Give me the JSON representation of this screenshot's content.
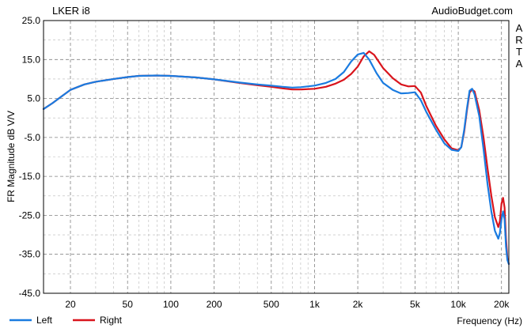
{
  "chart_data": {
    "type": "line",
    "title": "LKER i8",
    "watermark": "AudioBudget.com",
    "side_label": "ARTA",
    "xlabel": "Frequency (Hz)",
    "ylabel": "FR Magnitude dB V/V",
    "xscale": "log",
    "xlim": [
      13,
      22500
    ],
    "ylim": [
      -45,
      25
    ],
    "grid": true,
    "legend_position": "bottom-left",
    "x_ticks": [
      {
        "v": 20,
        "label": "20"
      },
      {
        "v": 50,
        "label": "50"
      },
      {
        "v": 100,
        "label": "100"
      },
      {
        "v": 200,
        "label": "200"
      },
      {
        "v": 500,
        "label": "500"
      },
      {
        "v": 1000,
        "label": "1k"
      },
      {
        "v": 2000,
        "label": "2k"
      },
      {
        "v": 5000,
        "label": "5k"
      },
      {
        "v": 10000,
        "label": "10k"
      },
      {
        "v": 20000,
        "label": "20k"
      }
    ],
    "y_ticks": [
      {
        "v": 25,
        "label": "25.0"
      },
      {
        "v": 15,
        "label": "15.0"
      },
      {
        "v": 5,
        "label": "5.0"
      },
      {
        "v": -5,
        "label": "-5.0"
      },
      {
        "v": -15,
        "label": "-15.0"
      },
      {
        "v": -25,
        "label": "-25.0"
      },
      {
        "v": -35,
        "label": "-35.0"
      },
      {
        "v": -45,
        "label": "-45.0"
      }
    ],
    "series": [
      {
        "name": "Left",
        "color": "#1a7be0",
        "points": [
          [
            13,
            2.3
          ],
          [
            15,
            3.8
          ],
          [
            17,
            5.3
          ],
          [
            20,
            7.2
          ],
          [
            25,
            8.6
          ],
          [
            30,
            9.3
          ],
          [
            40,
            10.0
          ],
          [
            50,
            10.5
          ],
          [
            60,
            10.8
          ],
          [
            80,
            10.9
          ],
          [
            100,
            10.8
          ],
          [
            150,
            10.4
          ],
          [
            200,
            9.9
          ],
          [
            300,
            9.1
          ],
          [
            400,
            8.6
          ],
          [
            500,
            8.3
          ],
          [
            600,
            8.0
          ],
          [
            700,
            7.8
          ],
          [
            800,
            7.9
          ],
          [
            1000,
            8.3
          ],
          [
            1200,
            9.0
          ],
          [
            1400,
            10.0
          ],
          [
            1600,
            11.8
          ],
          [
            1800,
            14.5
          ],
          [
            2000,
            16.3
          ],
          [
            2200,
            16.7
          ],
          [
            2400,
            15.0
          ],
          [
            2700,
            11.5
          ],
          [
            3000,
            9.0
          ],
          [
            3500,
            7.2
          ],
          [
            4000,
            6.3
          ],
          [
            4500,
            6.4
          ],
          [
            5000,
            6.6
          ],
          [
            5500,
            4.5
          ],
          [
            6000,
            1.5
          ],
          [
            7000,
            -3.0
          ],
          [
            8000,
            -6.5
          ],
          [
            9000,
            -8.2
          ],
          [
            10000,
            -8.5
          ],
          [
            10500,
            -7.5
          ],
          [
            11000,
            -3.0
          ],
          [
            11500,
            2.5
          ],
          [
            12000,
            7.0
          ],
          [
            12500,
            7.5
          ],
          [
            13000,
            6.0
          ],
          [
            14000,
            0.5
          ],
          [
            15000,
            -8.0
          ],
          [
            16000,
            -17.0
          ],
          [
            17000,
            -24.0
          ],
          [
            18000,
            -29.0
          ],
          [
            19000,
            -31.0
          ],
          [
            19500,
            -29.5
          ],
          [
            20000,
            -26.0
          ],
          [
            20500,
            -24.0
          ],
          [
            21000,
            -26.0
          ],
          [
            21500,
            -33.0
          ],
          [
            22000,
            -36.5
          ],
          [
            22500,
            -37.5
          ]
        ]
      },
      {
        "name": "Right",
        "color": "#d9141c",
        "points": [
          [
            13,
            2.3
          ],
          [
            15,
            3.8
          ],
          [
            17,
            5.3
          ],
          [
            20,
            7.2
          ],
          [
            25,
            8.6
          ],
          [
            30,
            9.3
          ],
          [
            40,
            10.0
          ],
          [
            50,
            10.5
          ],
          [
            60,
            10.8
          ],
          [
            80,
            10.9
          ],
          [
            100,
            10.8
          ],
          [
            150,
            10.4
          ],
          [
            200,
            9.9
          ],
          [
            300,
            9.0
          ],
          [
            400,
            8.4
          ],
          [
            500,
            8.0
          ],
          [
            600,
            7.6
          ],
          [
            700,
            7.3
          ],
          [
            800,
            7.3
          ],
          [
            1000,
            7.5
          ],
          [
            1200,
            8.0
          ],
          [
            1400,
            8.8
          ],
          [
            1600,
            9.8
          ],
          [
            1800,
            11.3
          ],
          [
            2000,
            13.2
          ],
          [
            2200,
            15.8
          ],
          [
            2400,
            17.1
          ],
          [
            2600,
            16.2
          ],
          [
            3000,
            12.8
          ],
          [
            3500,
            10.2
          ],
          [
            4000,
            8.6
          ],
          [
            4500,
            8.1
          ],
          [
            5000,
            8.2
          ],
          [
            5500,
            6.5
          ],
          [
            6000,
            3.0
          ],
          [
            7000,
            -2.0
          ],
          [
            8000,
            -5.5
          ],
          [
            9000,
            -7.8
          ],
          [
            10000,
            -8.3
          ],
          [
            10500,
            -7.5
          ],
          [
            11000,
            -3.5
          ],
          [
            11500,
            2.0
          ],
          [
            12000,
            6.5
          ],
          [
            12500,
            7.3
          ],
          [
            13000,
            6.8
          ],
          [
            14000,
            2.0
          ],
          [
            15000,
            -5.0
          ],
          [
            16000,
            -13.0
          ],
          [
            17000,
            -20.0
          ],
          [
            18000,
            -25.5
          ],
          [
            19000,
            -28.0
          ],
          [
            19500,
            -26.5
          ],
          [
            20000,
            -22.0
          ],
          [
            20500,
            -20.5
          ],
          [
            21000,
            -23.0
          ],
          [
            21500,
            -31.0
          ],
          [
            22000,
            -36.0
          ],
          [
            22500,
            -37.5
          ]
        ]
      }
    ]
  }
}
